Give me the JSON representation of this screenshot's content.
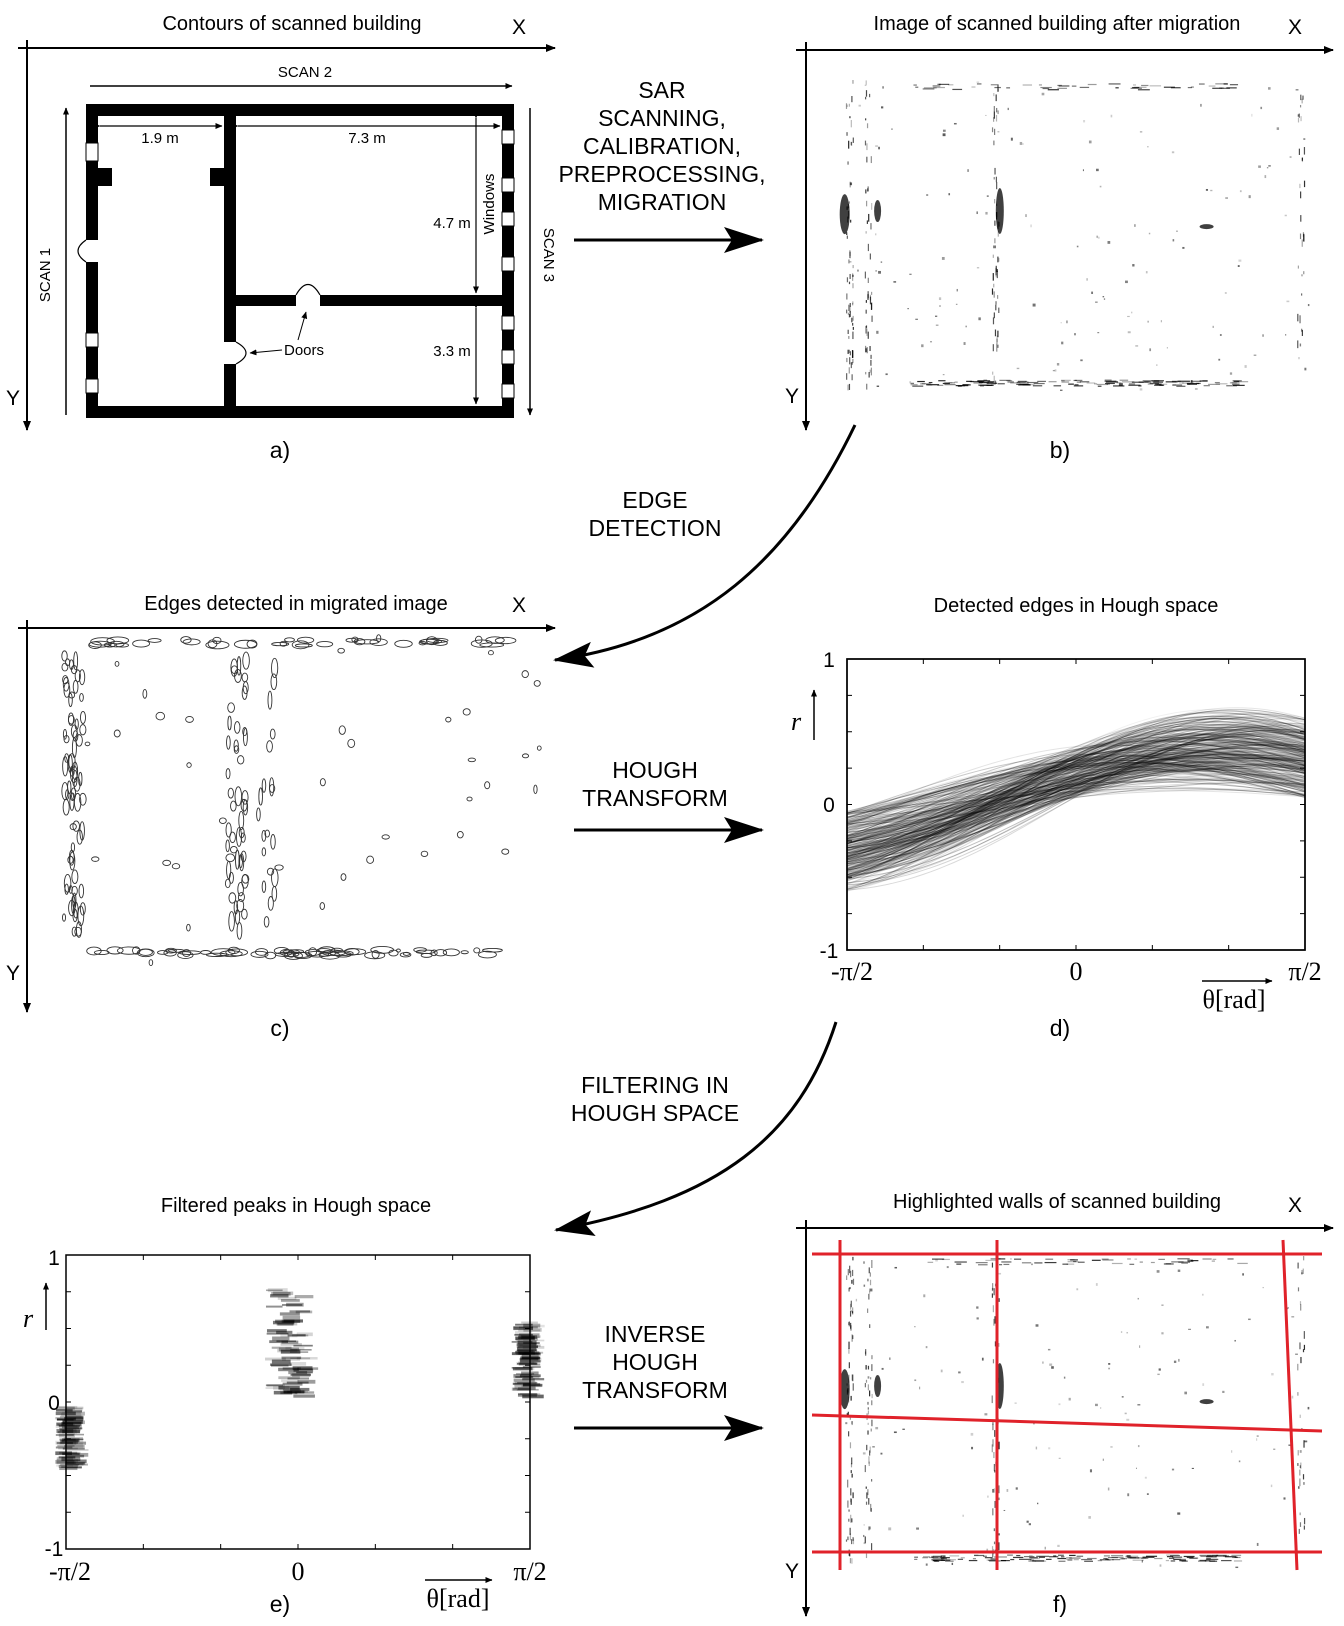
{
  "panel_a": {
    "title": "Contours of scanned building",
    "axis_x": "X",
    "axis_y": "Y",
    "scan1": "SCAN 1",
    "scan2": "SCAN 2",
    "scan3": "SCAN 3",
    "dim_1": "1.9 m",
    "dim_2": "7.3 m",
    "dim_3": "4.7 m",
    "dim_4": "3.3 m",
    "windows_label": "Windows",
    "doors_label": "Doors",
    "label": "a)"
  },
  "panel_b": {
    "title": "Image of scanned building after migration",
    "axis_x": "X",
    "axis_y": "Y",
    "label": "b)"
  },
  "panel_c": {
    "title": "Edges detected in migrated image",
    "axis_x": "X",
    "axis_y": "Y",
    "label": "c)"
  },
  "panel_d": {
    "title": "Detected edges in Hough space",
    "y_ticks": [
      "1",
      "0",
      "-1"
    ],
    "x_ticks": [
      "-π/2",
      "0",
      "π/2"
    ],
    "y_axis_label": "r",
    "x_axis_label": "θ[rad]",
    "label": "d)"
  },
  "panel_e": {
    "title": "Filtered peaks in Hough space",
    "y_ticks": [
      "1",
      "0",
      "-1"
    ],
    "x_ticks": [
      "-π/2",
      "0",
      "π/2"
    ],
    "y_axis_label": "r",
    "x_axis_label": "θ[rad]",
    "label": "e)"
  },
  "panel_f": {
    "title": "Highlighted walls of scanned building",
    "axis_x": "X",
    "axis_y": "Y",
    "label": "f)"
  },
  "steps": {
    "s1": [
      "SAR",
      "SCANNING,",
      "CALIBRATION,",
      "PREPROCESSING,",
      "MIGRATION"
    ],
    "s2": [
      "EDGE",
      "DETECTION"
    ],
    "s3": [
      "HOUGH",
      "TRANSFORM"
    ],
    "s4": [
      "FILTERING IN",
      "HOUGH SPACE"
    ],
    "s5": [
      "INVERSE",
      "HOUGH",
      "TRANSFORM"
    ]
  },
  "colors": {
    "wall_line": "#e0222a",
    "ink": "#000000"
  }
}
